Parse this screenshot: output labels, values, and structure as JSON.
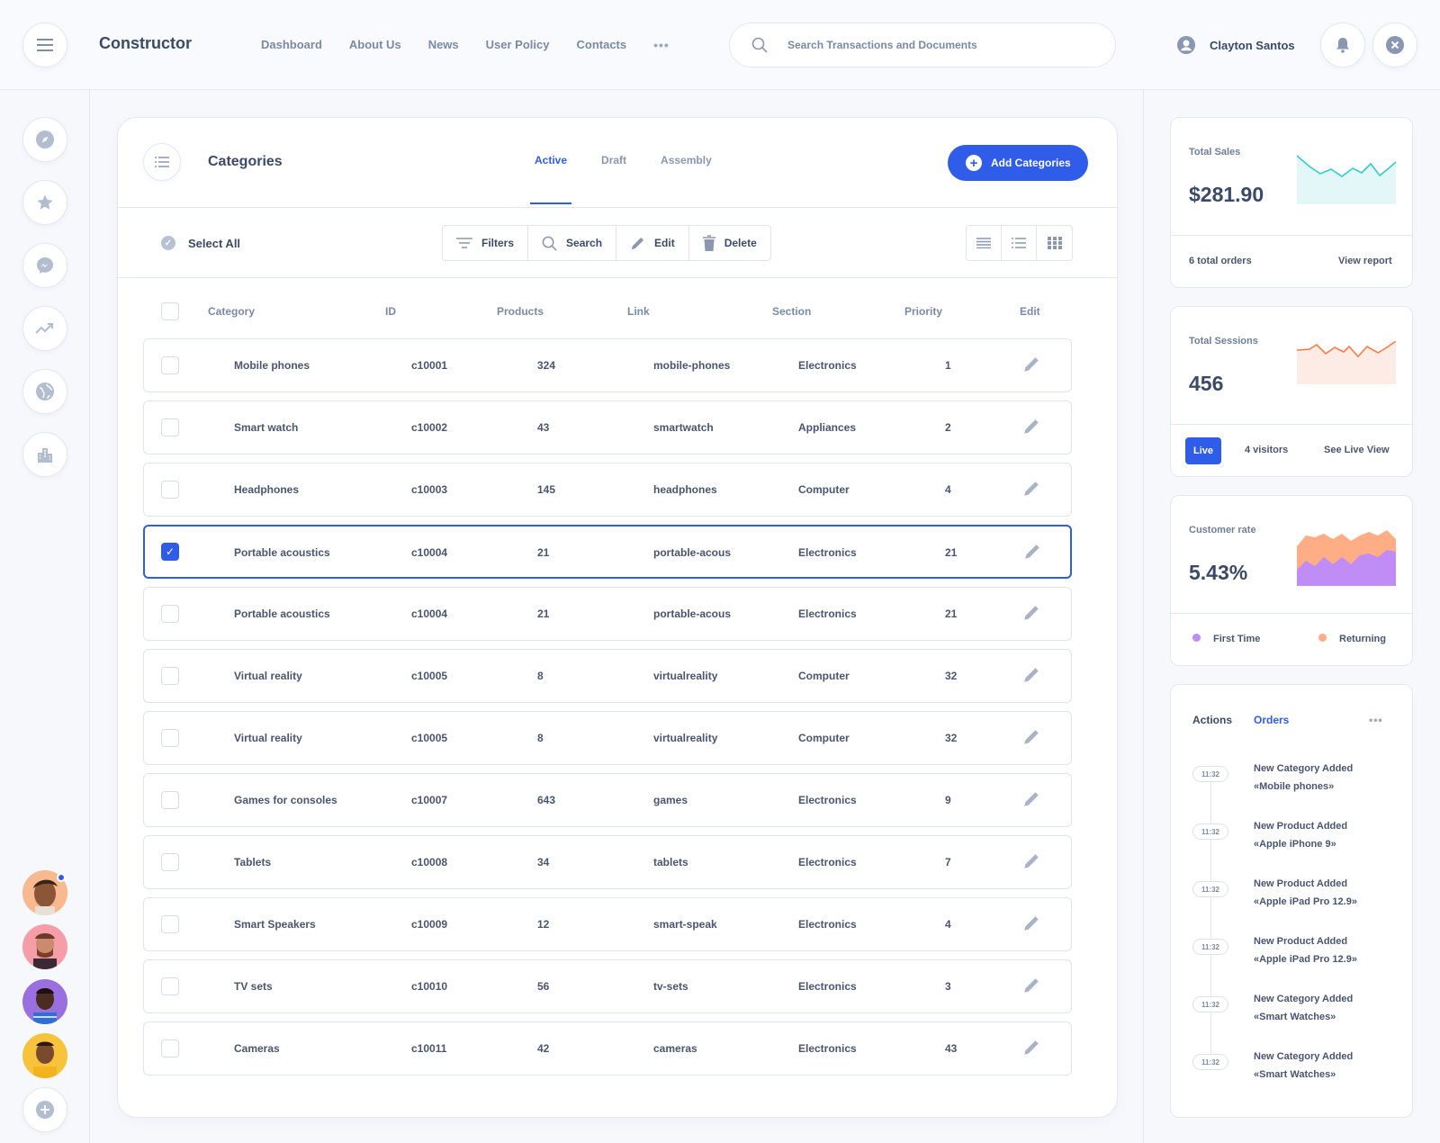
{
  "app": {
    "brand": "Constructor"
  },
  "nav": {
    "items": [
      "Dashboard",
      "About Us",
      "News",
      "User Policy",
      "Contacts"
    ],
    "more": "•••"
  },
  "search": {
    "placeholder": "Search Transactions and Documents"
  },
  "user": {
    "name": "Clayton Santos"
  },
  "sidebar": {
    "icons": [
      "compass-icon",
      "star-icon",
      "messenger-icon",
      "trending-up-icon",
      "globe-icon",
      "buildings-icon"
    ],
    "add_icon": "plus-circle-icon",
    "notification_dot_color": "#2f5ce8"
  },
  "categories": {
    "title": "Categories",
    "tabs": [
      "Active",
      "Draft",
      "Assembly"
    ],
    "active_tab": "Active",
    "add_button": "Add Categories",
    "select_all": "Select All",
    "toolbar": {
      "filters": "Filters",
      "search": "Search",
      "edit": "Edit",
      "delete": "Delete"
    },
    "columns": [
      "Category",
      "ID",
      "Products",
      "Link",
      "Section",
      "Priority",
      "Edit"
    ],
    "rows": [
      {
        "category": "Mobile phones",
        "id": "c10001",
        "products": "324",
        "link": "mobile-phones",
        "section": "Electronics",
        "priority": "1",
        "selected": false
      },
      {
        "category": "Smart watch",
        "id": "c10002",
        "products": "43",
        "link": "smartwatch",
        "section": "Appliances",
        "priority": "2",
        "selected": false
      },
      {
        "category": "Headphones",
        "id": "c10003",
        "products": "145",
        "link": "headphones",
        "section": "Computer",
        "priority": "4",
        "selected": false
      },
      {
        "category": "Portable acoustics",
        "id": "c10004",
        "products": "21",
        "link": "portable-acous",
        "section": "Electronics",
        "priority": "21",
        "selected": true
      },
      {
        "category": "Portable acoustics",
        "id": "c10004",
        "products": "21",
        "link": "portable-acous",
        "section": "Electronics",
        "priority": "21",
        "selected": false
      },
      {
        "category": "Virtual reality",
        "id": "c10005",
        "products": "8",
        "link": "virtualreality",
        "section": "Computer",
        "priority": "32",
        "selected": false
      },
      {
        "category": "Virtual reality",
        "id": "c10005",
        "products": "8",
        "link": "virtualreality",
        "section": "Computer",
        "priority": "32",
        "selected": false
      },
      {
        "category": "Games for consoles",
        "id": "c10007",
        "products": "643",
        "link": "games",
        "section": "Electronics",
        "priority": "9",
        "selected": false
      },
      {
        "category": "Tablets",
        "id": "c10008",
        "products": "34",
        "link": "tablets",
        "section": "Electronics",
        "priority": "7",
        "selected": false
      },
      {
        "category": "Smart Speakers",
        "id": "c10009",
        "products": "12",
        "link": "smart-speak",
        "section": "Electronics",
        "priority": "4",
        "selected": false
      },
      {
        "category": "TV sets",
        "id": "c10010",
        "products": "56",
        "link": "tv-sets",
        "section": "Electronics",
        "priority": "3",
        "selected": false
      },
      {
        "category": "Cameras",
        "id": "c10011",
        "products": "42",
        "link": "cameras",
        "section": "Electronics",
        "priority": "43",
        "selected": false
      }
    ]
  },
  "stats": {
    "sales": {
      "label": "Total Sales",
      "value": "$281.90",
      "orders": "6 total orders",
      "link": "View report",
      "color": "#2ecfc9"
    },
    "sessions": {
      "label": "Total Sessions",
      "value": "456",
      "live": "Live",
      "visitors": "4 visitors",
      "link": "See Live View",
      "color": "#ff7a45"
    },
    "customer": {
      "label": "Customer rate",
      "value": "5.43%",
      "first": "First Time",
      "returning": "Returning",
      "first_color": "#c08cf5",
      "returning_color": "#ffad85"
    }
  },
  "activity": {
    "tabs": [
      "Actions",
      "Orders"
    ],
    "more": "•••",
    "items": [
      {
        "time": "11:32",
        "title": "New Category Added",
        "sub": "«Mobile phones»"
      },
      {
        "time": "11:32",
        "title": "New Product Added",
        "sub": "«Apple iPhone 9»"
      },
      {
        "time": "11:32",
        "title": "New Product Added",
        "sub": "«Apple iPad Pro 12.9»"
      },
      {
        "time": "11:32",
        "title": "New Product Added",
        "sub": "«Apple iPad Pro 12.9»"
      },
      {
        "time": "11:32",
        "title": "New Category Added",
        "sub": "«Smart Watches»"
      },
      {
        "time": "11:32",
        "title": "New Category Added",
        "sub": "«Smart Watches»"
      }
    ]
  }
}
